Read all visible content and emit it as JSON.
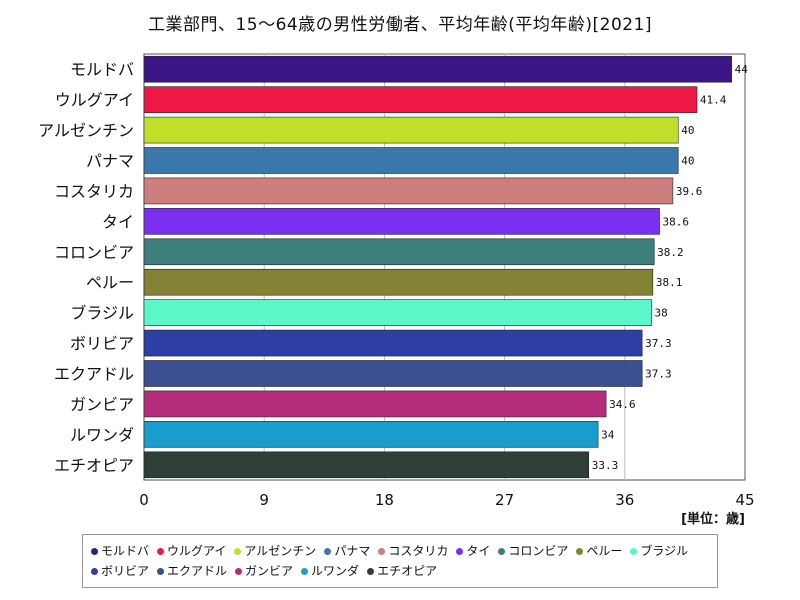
{
  "title": "工業部門、15～64歳の男性労働者、平均年齢(平均年齢)[2021]",
  "unit_label": "[単位：歳]",
  "chart_data": {
    "type": "bar",
    "orientation": "horizontal",
    "categories": [
      "モルドバ",
      "ウルグアイ",
      "アルゼンチン",
      "パナマ",
      "コスタリカ",
      "タイ",
      "コロンビア",
      "ペルー",
      "ブラジル",
      "ボリビア",
      "エクアドル",
      "ガンビア",
      "ルワンダ",
      "エチオピア"
    ],
    "values": [
      44,
      41.4,
      40,
      40,
      39.6,
      38.6,
      38.2,
      38.1,
      38,
      37.3,
      37.3,
      34.6,
      34,
      33.3
    ],
    "colors": [
      "#3a1785",
      "#ef1744",
      "#c0df2a",
      "#3a78ac",
      "#cd7e7e",
      "#7b2ff0",
      "#3d7f7c",
      "#838235",
      "#5af7c8",
      "#2f3ea5",
      "#3c4f91",
      "#b42c7a",
      "#1a9ccc",
      "#2e3f3a"
    ],
    "xlim": [
      0,
      45
    ],
    "xticks": [
      0,
      9,
      18,
      27,
      36,
      45
    ],
    "grid": true,
    "legend_position": "bottom"
  }
}
